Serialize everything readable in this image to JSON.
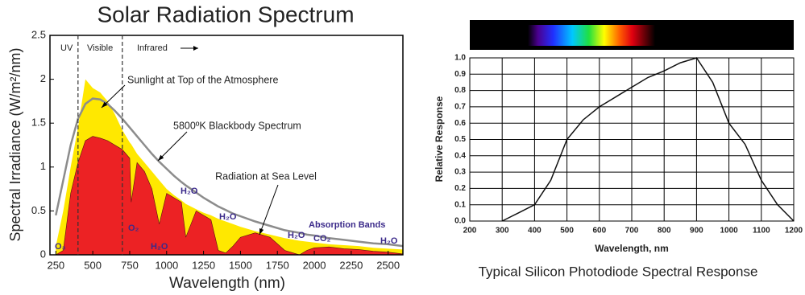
{
  "chart_data": [
    {
      "type": "area",
      "title": "Solar Radiation Spectrum",
      "x_label": "Wavelength (nm)",
      "y_label": "Spectral Irradiance (W/m²/nm)",
      "x": [
        250,
        300,
        350,
        400,
        450,
        500,
        550,
        600,
        650,
        700,
        750,
        760,
        800,
        850,
        900,
        950,
        1000,
        1050,
        1100,
        1130,
        1200,
        1250,
        1300,
        1350,
        1400,
        1450,
        1500,
        1600,
        1700,
        1800,
        1900,
        1950,
        2000,
        2100,
        2200,
        2300,
        2400,
        2500,
        2600
      ],
      "series": [
        {
          "name": "Sunlight at Top of the Atmosphere",
          "color": "#ffe800",
          "values": [
            0.1,
            0.5,
            1.0,
            1.45,
            2.0,
            1.9,
            1.85,
            1.75,
            1.6,
            1.42,
            1.28,
            1.26,
            1.15,
            1.05,
            0.95,
            0.85,
            0.75,
            0.68,
            0.62,
            0.58,
            0.52,
            0.48,
            0.45,
            0.41,
            0.38,
            0.35,
            0.32,
            0.27,
            0.23,
            0.19,
            0.16,
            0.15,
            0.14,
            0.12,
            0.11,
            0.1,
            0.08,
            0.07,
            0.06
          ]
        },
        {
          "name": "Radiation at Sea Level",
          "color": "#ec2224",
          "values": [
            0,
            0.05,
            0.7,
            1.05,
            1.3,
            1.35,
            1.33,
            1.3,
            1.25,
            1.2,
            1.1,
            0.6,
            1.05,
            0.95,
            0.75,
            0.35,
            0.7,
            0.65,
            0.6,
            0.2,
            0.5,
            0.45,
            0.4,
            0.05,
            0.02,
            0.1,
            0.2,
            0.25,
            0.2,
            0.05,
            0,
            0.05,
            0.08,
            0.09,
            0.07,
            0.06,
            0.04,
            0.03,
            0.01
          ]
        },
        {
          "name": "5800ºK Blackbody Spectrum",
          "color": "#8c8c8c",
          "type": "line",
          "values": [
            0.45,
            0.85,
            1.25,
            1.55,
            1.72,
            1.78,
            1.77,
            1.72,
            1.64,
            1.55,
            1.45,
            1.43,
            1.35,
            1.25,
            1.15,
            1.06,
            0.98,
            0.9,
            0.83,
            0.79,
            0.71,
            0.65,
            0.6,
            0.55,
            0.51,
            0.47,
            0.44,
            0.38,
            0.33,
            0.28,
            0.25,
            0.23,
            0.22,
            0.19,
            0.17,
            0.15,
            0.13,
            0.12,
            0.1
          ]
        }
      ],
      "regions": [
        "UV",
        "Visible",
        "Infrared"
      ],
      "dividers": [
        400,
        700
      ],
      "annotations": [
        "O₃",
        "O₂",
        "H₂O",
        "H₂O",
        "H₂O",
        "H₂O",
        "CO₂",
        "Absorption Bands",
        "H₂O"
      ],
      "xlim": [
        210,
        2600
      ],
      "xticks": [
        250,
        500,
        750,
        1000,
        1250,
        1500,
        1750,
        2000,
        2250,
        2500
      ],
      "ylim": [
        0,
        2.5
      ],
      "yticks": [
        0,
        0.5,
        1,
        1.5,
        2,
        2.5
      ]
    },
    {
      "type": "line",
      "title": "Typical Silicon Photodiode Spectral Response",
      "x_label": "Wavelength, nm",
      "y_label": "Relative Response",
      "x": [
        300,
        350,
        400,
        450,
        500,
        550,
        600,
        650,
        700,
        750,
        800,
        850,
        900,
        950,
        1000,
        1050,
        1100,
        1150,
        1200
      ],
      "series": [
        {
          "name": "Relative Response",
          "color": "#111111",
          "values": [
            0,
            0.05,
            0.1,
            0.25,
            0.5,
            0.62,
            0.7,
            0.76,
            0.82,
            0.88,
            0.92,
            0.97,
            1.0,
            0.85,
            0.6,
            0.47,
            0.25,
            0.1,
            0
          ]
        }
      ],
      "xlim": [
        200,
        1200
      ],
      "xticks": [
        200,
        300,
        400,
        500,
        600,
        700,
        800,
        900,
        1000,
        1100,
        1200
      ],
      "ylim": [
        0,
        1
      ],
      "yticks": [
        {
          "value": 0,
          "label": "0.0"
        },
        0.1,
        0.2,
        0.3,
        0.4,
        0.5,
        0.6,
        0.7,
        0.8,
        0.9,
        {
          "value": 1,
          "label": "1.0"
        }
      ],
      "grid": true
    }
  ]
}
